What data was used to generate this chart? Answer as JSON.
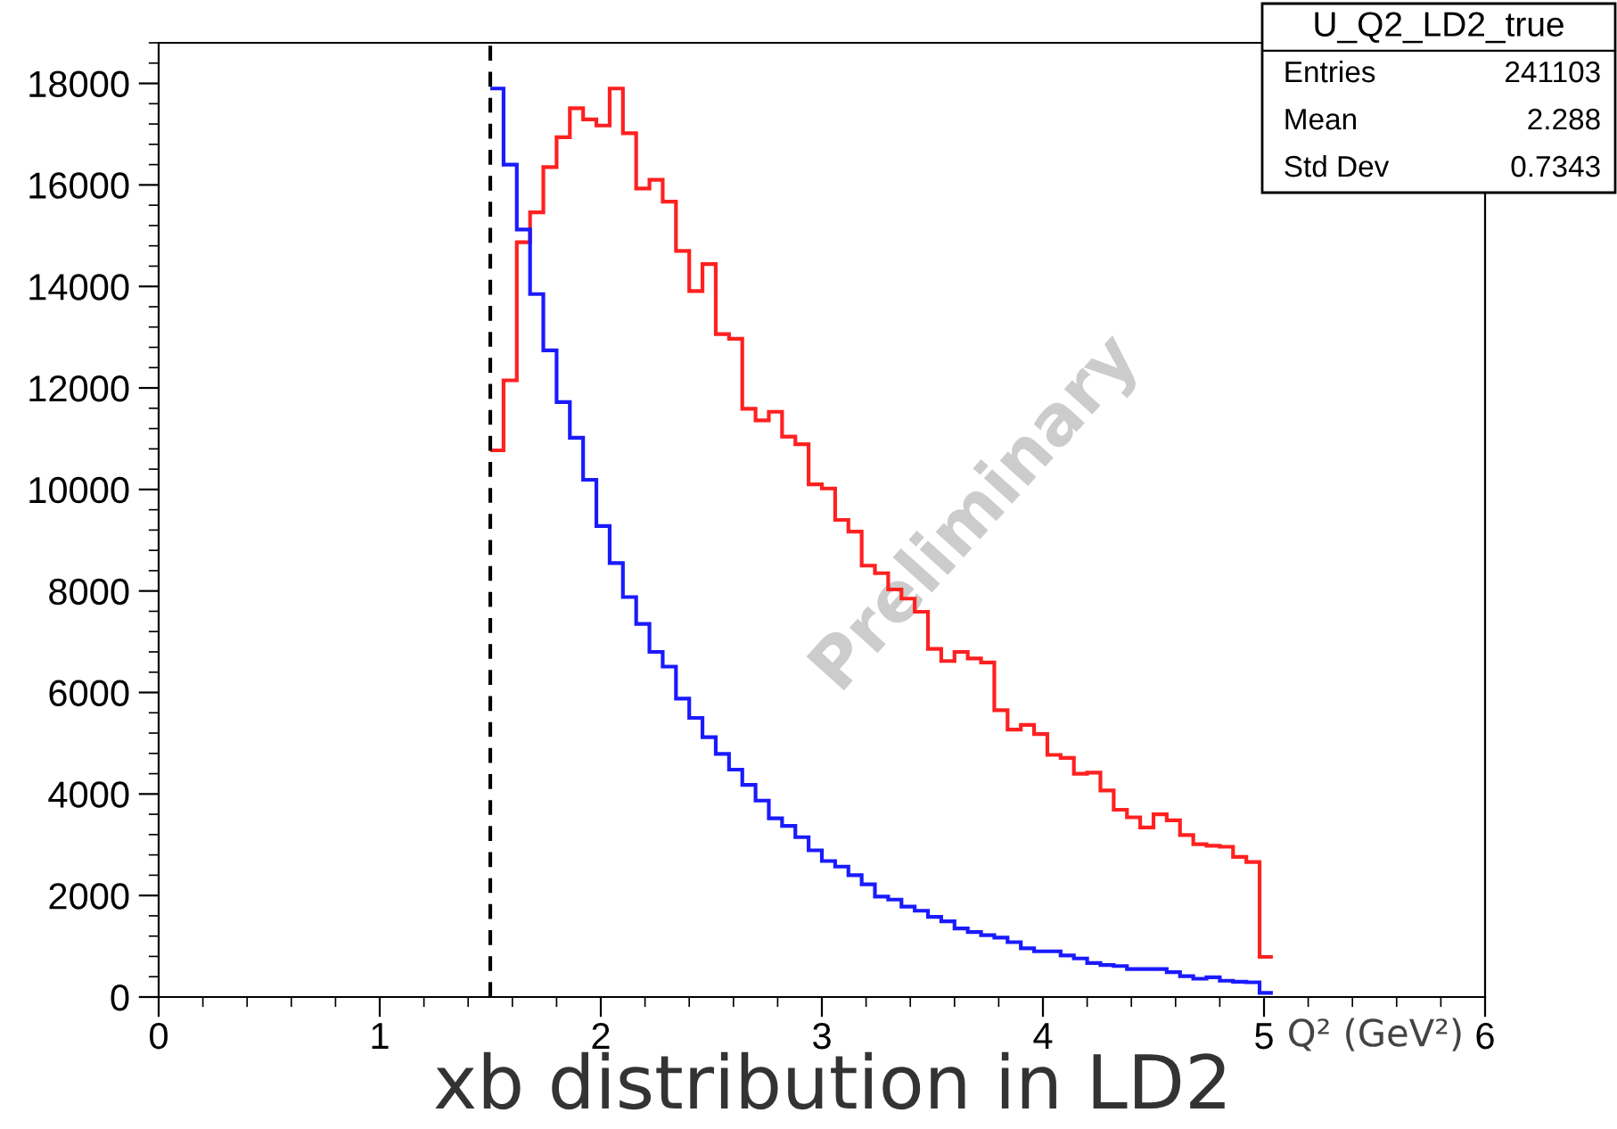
{
  "chart_data": {
    "type": "histogram",
    "bins": [
      1.5,
      1.56,
      1.62,
      1.68,
      1.74,
      1.8,
      1.86,
      1.92,
      1.98,
      2.04,
      2.1,
      2.16,
      2.22,
      2.28,
      2.34,
      2.4,
      2.46,
      2.52,
      2.58,
      2.64,
      2.7,
      2.76,
      2.82,
      2.88,
      2.94,
      3.0,
      3.06,
      3.12,
      3.18,
      3.24,
      3.3,
      3.36,
      3.42,
      3.48,
      3.54,
      3.6,
      3.66,
      3.72,
      3.78,
      3.84,
      3.9,
      3.96,
      4.02,
      4.08,
      4.14,
      4.2,
      4.26,
      4.32,
      4.38,
      4.44,
      4.5,
      4.56,
      4.62,
      4.68,
      4.74,
      4.8,
      4.86,
      4.92,
      4.98,
      5.04
    ],
    "series": [
      {
        "color": "#ff2020",
        "values": [
          10770,
          12150,
          14870,
          15460,
          16350,
          16940,
          17510,
          17290,
          17170,
          17900,
          17020,
          15930,
          16100,
          15670,
          14700,
          13910,
          14440,
          13060,
          12970,
          11590,
          11360,
          11530,
          11040,
          10890,
          10100,
          10020,
          9400,
          9170,
          8500,
          8350,
          8030,
          7850,
          7590,
          6860,
          6620,
          6800,
          6670,
          6590,
          5650,
          5270,
          5360,
          5180,
          4770,
          4710,
          4400,
          4420,
          4070,
          3690,
          3540,
          3340,
          3600,
          3480,
          3190,
          3010,
          2980,
          2960,
          2760,
          2660,
          790
        ]
      },
      {
        "color": "#1a1aff",
        "values": [
          17900,
          16400,
          15120,
          13850,
          12740,
          11720,
          11020,
          10190,
          9280,
          8550,
          7880,
          7350,
          6800,
          6510,
          5880,
          5500,
          5120,
          4790,
          4480,
          4180,
          3870,
          3520,
          3370,
          3150,
          2890,
          2680,
          2570,
          2400,
          2220,
          1980,
          1920,
          1780,
          1700,
          1580,
          1490,
          1350,
          1280,
          1220,
          1170,
          1080,
          960,
          900,
          900,
          820,
          760,
          670,
          630,
          610,
          550,
          550,
          550,
          490,
          410,
          360,
          390,
          320,
          300,
          290,
          80
        ]
      }
    ],
    "xlim": [
      0,
      6
    ],
    "ylim": [
      0,
      18800
    ],
    "xticks": [
      0,
      1,
      2,
      3,
      4,
      5,
      6
    ],
    "yticks": [
      0,
      2000,
      4000,
      6000,
      8000,
      10000,
      12000,
      14000,
      16000,
      18000
    ],
    "xlabel": "Q² (GeV²)",
    "ref_lines": [
      {
        "axis": "x",
        "value": 1.5,
        "color": "#000000",
        "line_style": "dashed"
      }
    ],
    "grid": false,
    "annotations": [
      "U_Q2_LD2_true",
      "Entries",
      "241103",
      "Mean",
      "2.288",
      "Std Dev",
      "0.7343",
      "Preliminary",
      "xb distribution in LD2"
    ]
  }
}
